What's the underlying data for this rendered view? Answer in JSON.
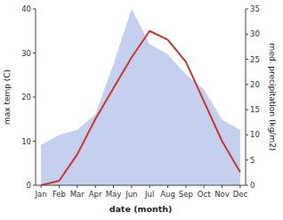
{
  "chart_data": {
    "type": "line",
    "categories": [
      "Jan",
      "Feb",
      "Mar",
      "Apr",
      "May",
      "Jun",
      "Jul",
      "Aug",
      "Sep",
      "Oct",
      "Nov",
      "Dec"
    ],
    "xlabel": "date (month)",
    "ylabel": "max temp (C)",
    "y2label": "med. precipitation (kg/m2)",
    "ylim": [
      0,
      40
    ],
    "yticks": [
      0,
      10,
      20,
      30,
      40
    ],
    "y2lim": [
      0,
      35
    ],
    "y2ticks": [
      0,
      5,
      10,
      15,
      20,
      25,
      30,
      35
    ],
    "grid": false,
    "series": [
      {
        "type": "area",
        "axis": "y2",
        "color": "#c5d0ee",
        "values": [
          8,
          10,
          11,
          14,
          24,
          35,
          28,
          26,
          22,
          19,
          13,
          11
        ]
      },
      {
        "type": "line",
        "color": "#cc3333",
        "values": [
          0,
          1,
          7,
          15,
          22,
          29,
          35,
          33,
          28,
          19,
          10,
          3
        ]
      }
    ]
  }
}
